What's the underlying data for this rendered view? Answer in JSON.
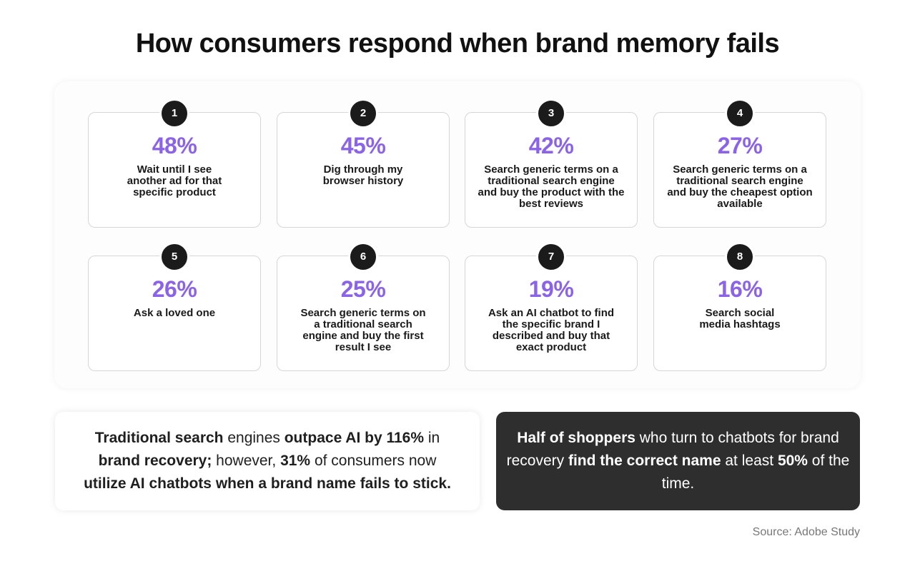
{
  "title": "How consumers respond when brand memory fails",
  "cards": [
    {
      "number": "1",
      "percent": "48%",
      "text": "Wait until I see another ad for that specific product"
    },
    {
      "number": "2",
      "percent": "45%",
      "text": "Dig through my browser history"
    },
    {
      "number": "3",
      "percent": "42%",
      "text": "Search generic terms on a traditional search engine and buy the product with the best reviews"
    },
    {
      "number": "4",
      "percent": "27%",
      "text": "Search generic terms on a traditional search engine and buy the cheapest option available"
    },
    {
      "number": "5",
      "percent": "26%",
      "text": "Ask a loved one"
    },
    {
      "number": "6",
      "percent": "25%",
      "text": "Search generic terms on a traditional search engine and buy the first result I see"
    },
    {
      "number": "7",
      "percent": "19%",
      "text": "Ask an AI chatbot to find the specific brand I described and buy that exact product"
    },
    {
      "number": "8",
      "percent": "16%",
      "text": "Search social media hashtags"
    }
  ],
  "callout_left": {
    "p1": "Traditional search",
    "p2": " engines ",
    "p3": "outpace AI by 116%",
    "p4": " in ",
    "p5": "brand recovery;",
    "p6": " however, ",
    "p7": "31%",
    "p8": " of consumers now ",
    "p9": "utilize AI chatbots when a brand name fails to stick."
  },
  "callout_right": {
    "p1": "Half of shoppers",
    "p2": " who turn to chatbots for brand recovery ",
    "p3": "find the correct name",
    "p4": " at least ",
    "p5": "50%",
    "p6": " of the time."
  },
  "source": "Source: Adobe Study",
  "colors": {
    "accent_purple": "#8b63e8",
    "dark_box": "#2e2e2e",
    "badge": "#1b1b1b"
  }
}
